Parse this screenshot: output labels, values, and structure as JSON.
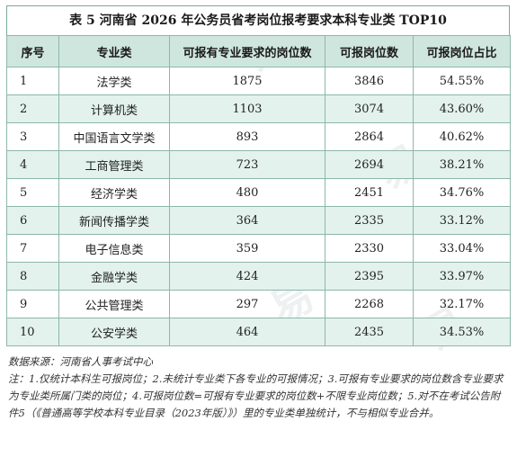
{
  "title": "表 5 河南省 2026 年公务员省考岗位报考要求本科专业类 TOP10",
  "headers": [
    "序号",
    "专业类",
    "可报有专业要求的岗位数",
    "可报岗位数",
    "可报岗位占比"
  ],
  "rows": [
    {
      "no": "1",
      "major": "法学类",
      "req": "1875",
      "total": "3846",
      "ratio": "54.55%"
    },
    {
      "no": "2",
      "major": "计算机类",
      "req": "1103",
      "total": "3074",
      "ratio": "43.60%"
    },
    {
      "no": "3",
      "major": "中国语言文学类",
      "req": "893",
      "total": "2864",
      "ratio": "40.62%"
    },
    {
      "no": "4",
      "major": "工商管理类",
      "req": "723",
      "total": "2694",
      "ratio": "38.21%"
    },
    {
      "no": "5",
      "major": "经济学类",
      "req": "480",
      "total": "2451",
      "ratio": "34.76%"
    },
    {
      "no": "6",
      "major": "新闻传播学类",
      "req": "364",
      "total": "2335",
      "ratio": "33.12%"
    },
    {
      "no": "7",
      "major": "电子信息类",
      "req": "359",
      "total": "2330",
      "ratio": "33.04%"
    },
    {
      "no": "8",
      "major": "金融学类",
      "req": "424",
      "total": "2395",
      "ratio": "33.97%"
    },
    {
      "no": "9",
      "major": "公共管理类",
      "req": "297",
      "total": "2268",
      "ratio": "32.17%"
    },
    {
      "no": "10",
      "major": "公安学类",
      "req": "464",
      "total": "2435",
      "ratio": "34.53%"
    }
  ],
  "source": "数据来源：河南省人事考试中心",
  "note": "注：1.仅统计本科生可报岗位；2.未统计专业类下各专业的可报情况；3.可报有专业要求的岗位数含专业要求为专业类所属门类的岗位；4.可报岗位数=可报有专业要求的岗位数+不限专业岗位数；5.对不在考试公告附件5（《普通高等学校本科专业目录（2023年版）》）里的专业类单独统计，不与相似专业合并。"
}
